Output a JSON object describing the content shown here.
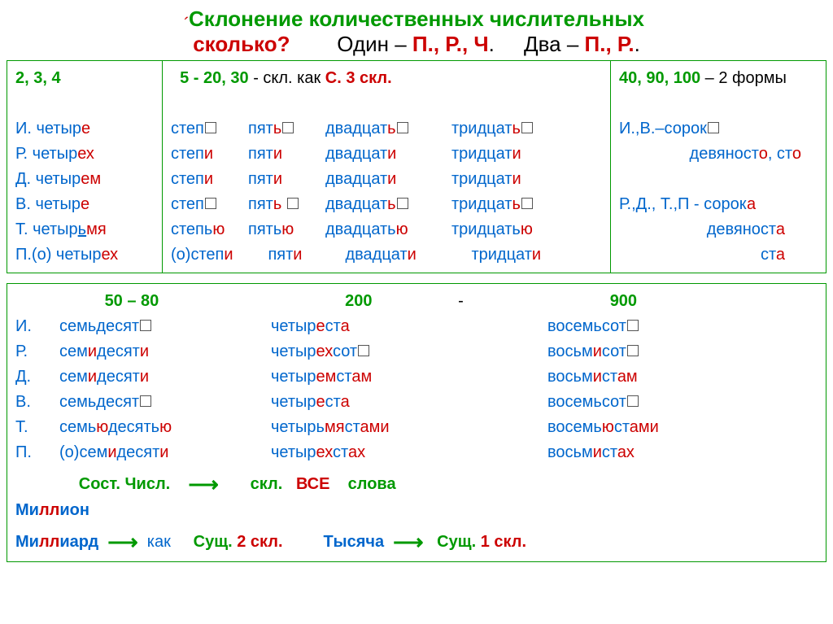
{
  "title": {
    "line1": "Склонение количественных числительных",
    "q_word": "сколько?",
    "stress_mark": "´",
    "odin": "Один – ",
    "prch": "П., Р., Ч",
    "dva": "Два – ",
    "pr": "П., Р."
  },
  "col1": {
    "header": "2, 3, 4",
    "rows": [
      {
        "case": "И.",
        "stem": "четыр",
        "end": "е"
      },
      {
        "case": "Р.",
        "stem": "четыр",
        "end": "ех"
      },
      {
        "case": "Д.",
        "stem": "четыр",
        "end": "ем"
      },
      {
        "case": "В.",
        "stem": "четыр",
        "end": "е"
      },
      {
        "case": "Т.",
        "stem": "четыр",
        "mid": "ь",
        "end": "мя"
      },
      {
        "case": "П.(о)",
        "stem": "четыр",
        "end": "ех"
      }
    ]
  },
  "col2": {
    "header_a": "5  -  20, 30",
    "header_b": " -  скл. как   ",
    "header_c": "С. 3 скл.",
    "rows": [
      {
        "w1s": "степ",
        "w1e": "",
        "box1": true,
        "w2s": "пят",
        "w2e": "ь",
        "box2": true,
        "w3s": "двадцат",
        "w3e": "ь",
        "box3": true,
        "w4s": "тридцат",
        "w4e": "ь",
        "box4": true
      },
      {
        "w1s": "степ",
        "w1e": "и",
        "w2s": "пят",
        "w2e": "и",
        "w3s": "двадцат",
        "w3e": "и",
        "w4s": "тридцат",
        "w4e": "и"
      },
      {
        "w1s": "степ",
        "w1e": "и",
        "w2s": "пят",
        "w2e": "и",
        "w3s": "двадцат",
        "w3e": "и",
        "w4s": "тридцат",
        "w4e": "и"
      },
      {
        "w1s": "степ",
        "w1e": "",
        "box1": true,
        "w2s": "пят",
        "w2e": "ь",
        "box2a": true,
        "w3s": "двадцат",
        "w3e": "ь",
        "box3": true,
        "w4s": "тридцат",
        "w4e": "ь",
        "box4": true
      },
      {
        "w1s": "степь",
        "w1e": "ю",
        "w2s": "пять",
        "w2e": "ю",
        "w3s": "двадцать",
        "w3e": "ю",
        "w4s": "тридцать",
        "w4e": "ю"
      },
      {
        "pre": "(о)",
        "w1s": "степ",
        "w1e": "и",
        "w2s": "пят",
        "w2e": "и",
        "w3s": "двадцат",
        "w3e": "и",
        "w4s": "тридцат",
        "w4e": "и"
      }
    ]
  },
  "col3": {
    "header_a": "40, 90, 100",
    "header_b": " – 2 формы",
    "r1a": "И.,В.–сорок",
    "r2a": "девяност",
    "r2b": "о",
    "r2c": ", ст",
    "r2d": "о",
    "r3a": "Р.,Д., Т.,П  -   сорок",
    "r3b": "а",
    "r4a": "девяност",
    "r4b": "а",
    "r5a": "ст",
    "r5b": "а"
  },
  "bottom": {
    "h1": "50 – 80",
    "h2": "200",
    "hd": "-",
    "h3": "900",
    "rows": [
      {
        "c": "И.",
        "a1": "семьдесят",
        "a1b": true,
        "b1": "четыр",
        "b2": "е",
        "b3": "ст",
        "b4": "а",
        "c1": "восемьсот",
        "c1b": true
      },
      {
        "c": "Р.",
        "a1": "сем",
        "a2": "и",
        "a3": "десят",
        "a4": "и",
        "b1": "четыр",
        "b2": "ех",
        "b3": "сот",
        "b3b": true,
        "c1": "восьм",
        "c2": "и",
        "c3": "сот",
        "c3b": true
      },
      {
        "c": "Д.",
        "a1": "сем",
        "a2": "и",
        "a3": "десят",
        "a4": "и",
        "b1": "четыр",
        "b2": "ем",
        "b3": "ст",
        "b4": "ам",
        "c1": "восьм",
        "c2": "и",
        "c3": "ст",
        "c4": "ам"
      },
      {
        "c": "В.",
        "a1": "семьдесят",
        "a1b": true,
        "b1": "четыр",
        "b2": "е",
        "b3": "ст",
        "b4": "а",
        "c1": "восемьсот",
        "c1b": true
      },
      {
        "c": "Т.",
        "a1": "семь",
        "a2": "ю",
        "a3": "десять",
        "a4": "ю",
        "b1": "четырь",
        "b2": "мя",
        "b3": "ст",
        "b4": "ами",
        "c1": "восемь",
        "c2": "ю",
        "c3": "ст",
        "c4": "ами"
      },
      {
        "c": "П.",
        "pre": "(о)",
        "a1": "сем",
        "a2": "и",
        "a3": "десят",
        "a4": "и",
        "b1": "четыр",
        "b2": "ех",
        "b3": "ст",
        "b4": "ах",
        "c1": "восьм",
        "c2": "и",
        "c3": "ст",
        "c4": "ах"
      }
    ],
    "foot1a": "Сост. Числ.",
    "foot1b": "скл.",
    "foot1c": "ВСЕ",
    "foot1d": "слова",
    "mil": "Миллион",
    "mrd": "Миллиард",
    "kak": "как",
    "sush2": "Сущ. ",
    "skl2": "2 скл.",
    "tys": "Тысяча",
    "sush1": "Сущ. ",
    "skl1": "1 скл.",
    "ll": "лл",
    "mi1": "Ми",
    "on": "ион",
    "mi2": "Ми",
    "ard": "иард"
  },
  "colors": {
    "green": "#009900",
    "red": "#cc0000",
    "blue": "#0066cc"
  }
}
